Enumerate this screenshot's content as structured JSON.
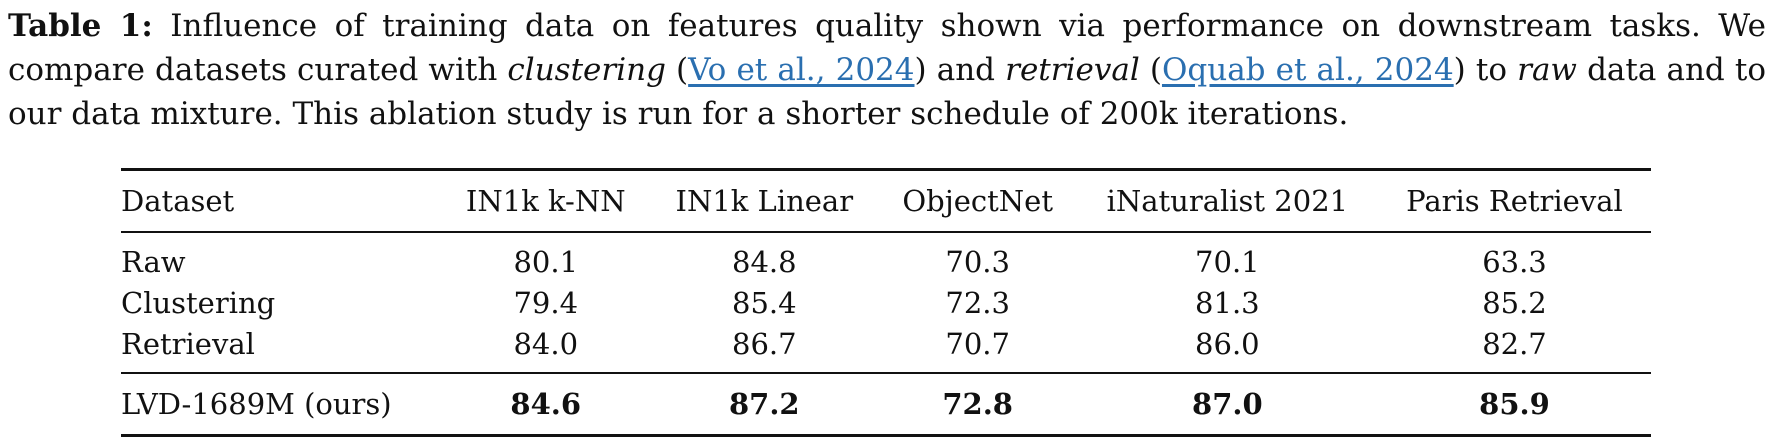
{
  "caption": {
    "label": "Table 1:",
    "text_1": " Influence of training data on features quality shown via performance on downstream tasks. We compare datasets curated with ",
    "italic_1": "clustering",
    "text_2": " (",
    "cite_1": "Vo et al., 2024",
    "text_3": ") and ",
    "italic_2": "retrieval",
    "text_4": " (",
    "cite_2": "Oquab et al., 2024",
    "text_5": ") to ",
    "italic_3": "raw",
    "text_6": " data and to our data mixture. This ablation study is run for a shorter schedule of 200k iterations."
  },
  "table": {
    "headers": [
      "Dataset",
      "IN1k k-NN",
      "IN1k Linear",
      "ObjectNet",
      "iNaturalist 2021",
      "Paris Retrieval"
    ],
    "rows": [
      [
        "Raw",
        "80.1",
        "84.8",
        "70.3",
        "70.1",
        "63.3"
      ],
      [
        "Clustering",
        "79.4",
        "85.4",
        "72.3",
        "81.3",
        "85.2"
      ],
      [
        "Retrieval",
        "84.0",
        "86.7",
        "70.7",
        "86.0",
        "82.7"
      ]
    ],
    "ours": [
      "LVD-1689M (ours)",
      "84.6",
      "87.2",
      "72.8",
      "87.0",
      "85.9"
    ]
  },
  "colors": {
    "citation": "#2a6fb0",
    "text": "#111111"
  }
}
